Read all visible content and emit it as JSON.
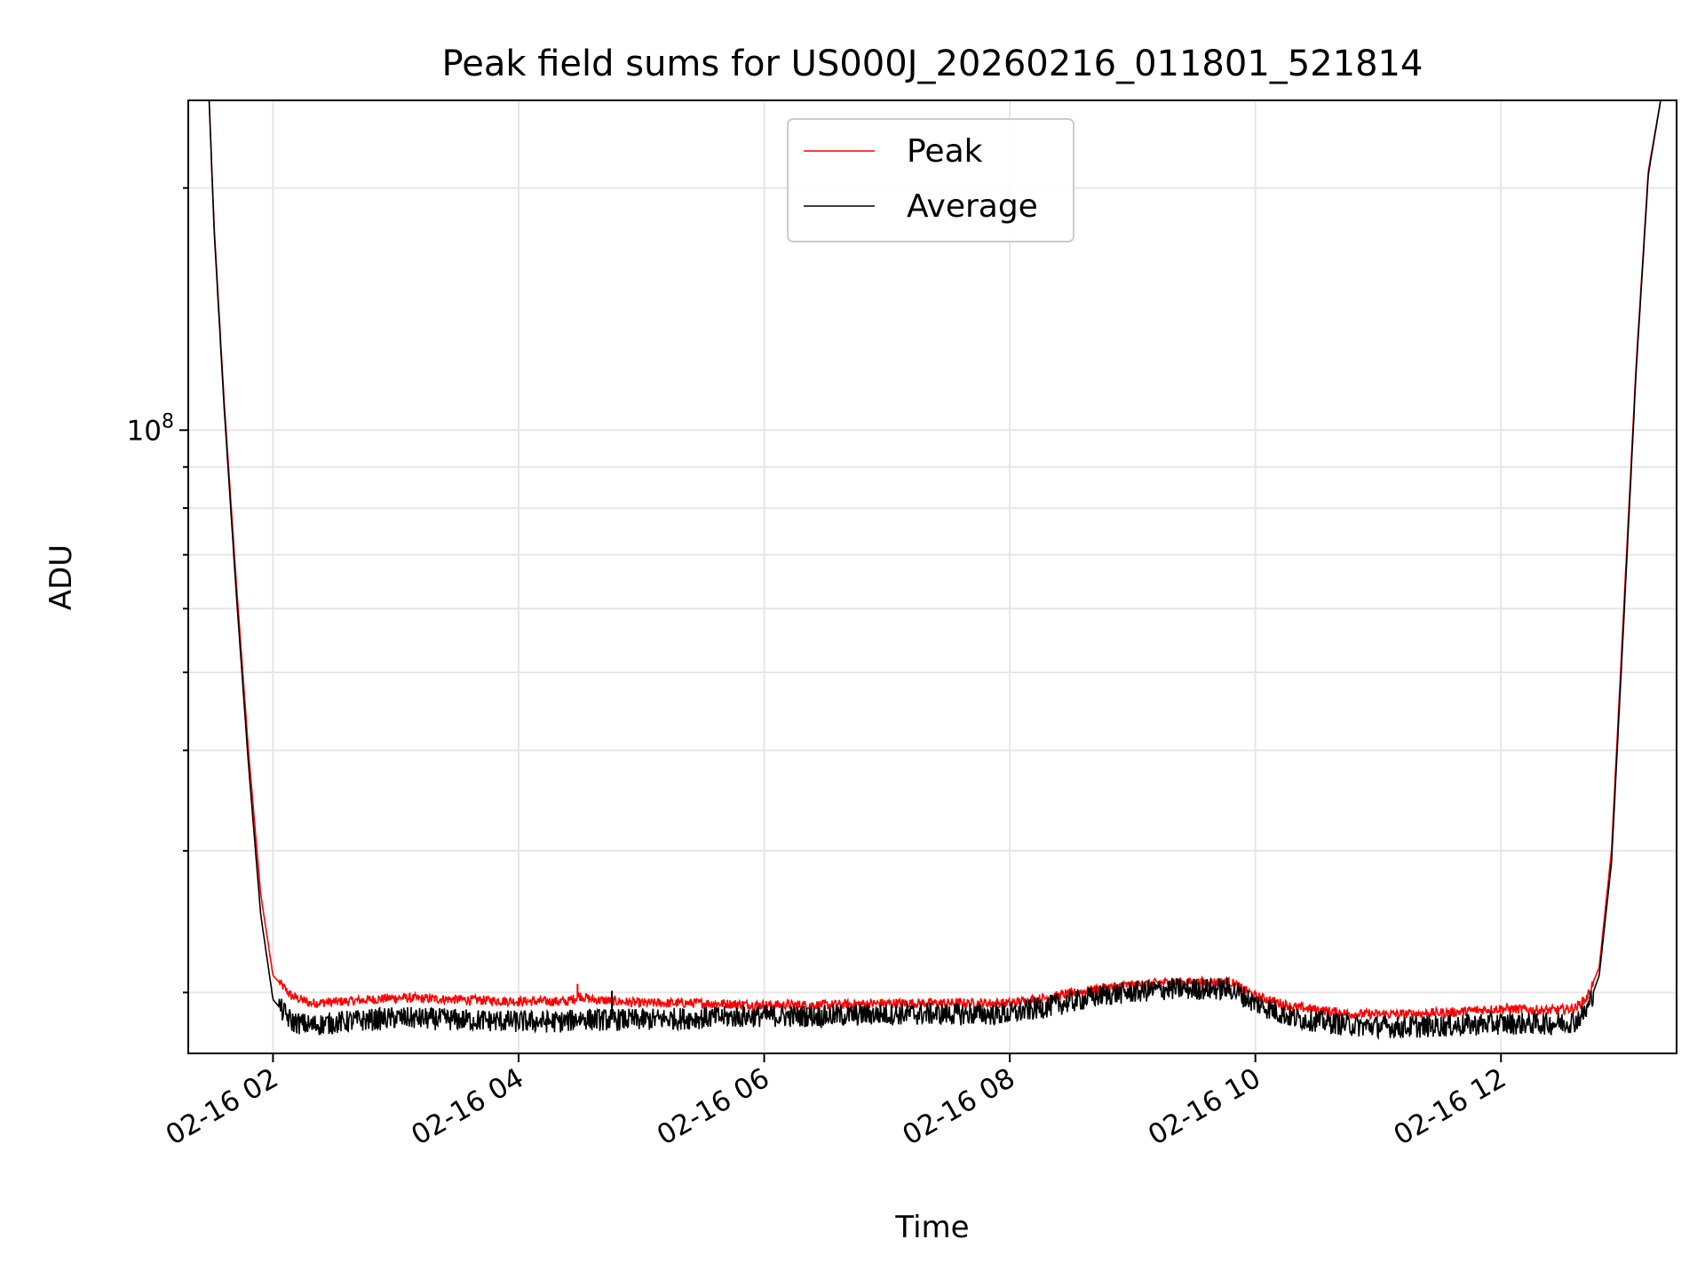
{
  "chart_data": {
    "type": "line",
    "title": "Peak field sums for US000J_20260216_011801_521814",
    "xlabel": "Time",
    "ylabel": "ADU",
    "y_scale": "log",
    "y_tick_labels": [
      {
        "base": "10",
        "exp": "8",
        "value": 100000000
      }
    ],
    "ylim": [
      16800000,
      257000000
    ],
    "xlim": [
      1.31,
      13.43
    ],
    "x_ticks": [
      {
        "value": 2,
        "label": "02-16 02"
      },
      {
        "value": 4,
        "label": "02-16 04"
      },
      {
        "value": 6,
        "label": "02-16 06"
      },
      {
        "value": 8,
        "label": "02-16 08"
      },
      {
        "value": 10,
        "label": "02-16 10"
      },
      {
        "value": 12,
        "label": "02-16 12"
      }
    ],
    "grid": true,
    "legend": {
      "position": "top-center",
      "entries": [
        {
          "name": "Peak",
          "color": "#ff0000"
        },
        {
          "name": "Average",
          "color": "#000000"
        }
      ]
    },
    "series": [
      {
        "name": "Peak",
        "color": "#ff0000",
        "x": [
          1.48,
          1.52,
          1.6,
          1.7,
          1.8,
          1.9,
          2.0,
          2.15,
          2.3,
          2.6,
          3.0,
          3.5,
          4.0,
          4.4,
          4.5,
          4.6,
          5.0,
          5.5,
          6.0,
          6.5,
          7.0,
          7.5,
          8.0,
          8.3,
          8.8,
          9.3,
          9.8,
          10.0,
          10.3,
          10.8,
          11.2,
          11.6,
          12.0,
          12.4,
          12.6,
          12.7,
          12.8,
          12.9,
          13.0,
          13.1,
          13.2,
          13.3
        ],
        "values": [
          257000000,
          180000000,
          110000000,
          65000000,
          40000000,
          26500000,
          21000000,
          19800000,
          19400000,
          19500000,
          19700000,
          19600000,
          19500000,
          19500000,
          19800000,
          19600000,
          19400000,
          19400000,
          19300000,
          19300000,
          19400000,
          19400000,
          19400000,
          19700000,
          20300000,
          20600000,
          20600000,
          19800000,
          19200000,
          18800000,
          18800000,
          18900000,
          19100000,
          19000000,
          19100000,
          19700000,
          21500000,
          30000000,
          60000000,
          120000000,
          210000000,
          257000000
        ]
      },
      {
        "name": "Average",
        "color": "#000000",
        "x": [
          1.48,
          1.52,
          1.6,
          1.7,
          1.8,
          1.9,
          2.0,
          2.15,
          2.3,
          2.6,
          3.0,
          3.5,
          4.0,
          4.4,
          4.5,
          4.6,
          5.0,
          5.5,
          6.0,
          6.5,
          7.0,
          7.5,
          8.0,
          8.3,
          8.8,
          9.3,
          9.8,
          10.0,
          10.3,
          10.8,
          11.2,
          11.6,
          12.0,
          12.4,
          12.6,
          12.7,
          12.8,
          12.9,
          13.0,
          13.1,
          13.2,
          13.3
        ],
        "values": [
          257000000,
          178000000,
          108000000,
          63000000,
          38500000,
          25000000,
          19600000,
          18400000,
          18200000,
          18400000,
          18600000,
          18500000,
          18400000,
          18400000,
          18600000,
          18500000,
          18500000,
          18600000,
          18700000,
          18700000,
          18800000,
          18800000,
          18800000,
          19200000,
          19900000,
          20200000,
          20200000,
          19400000,
          18600000,
          18200000,
          18100000,
          18200000,
          18300000,
          18300000,
          18400000,
          19000000,
          21000000,
          29000000,
          58000000,
          118000000,
          208000000,
          257000000
        ]
      }
    ],
    "annotations": [
      {
        "series": "Peak",
        "x": 4.48,
        "value": 20500000
      },
      {
        "series": "Average",
        "x": 4.76,
        "value": 20100000
      }
    ]
  }
}
